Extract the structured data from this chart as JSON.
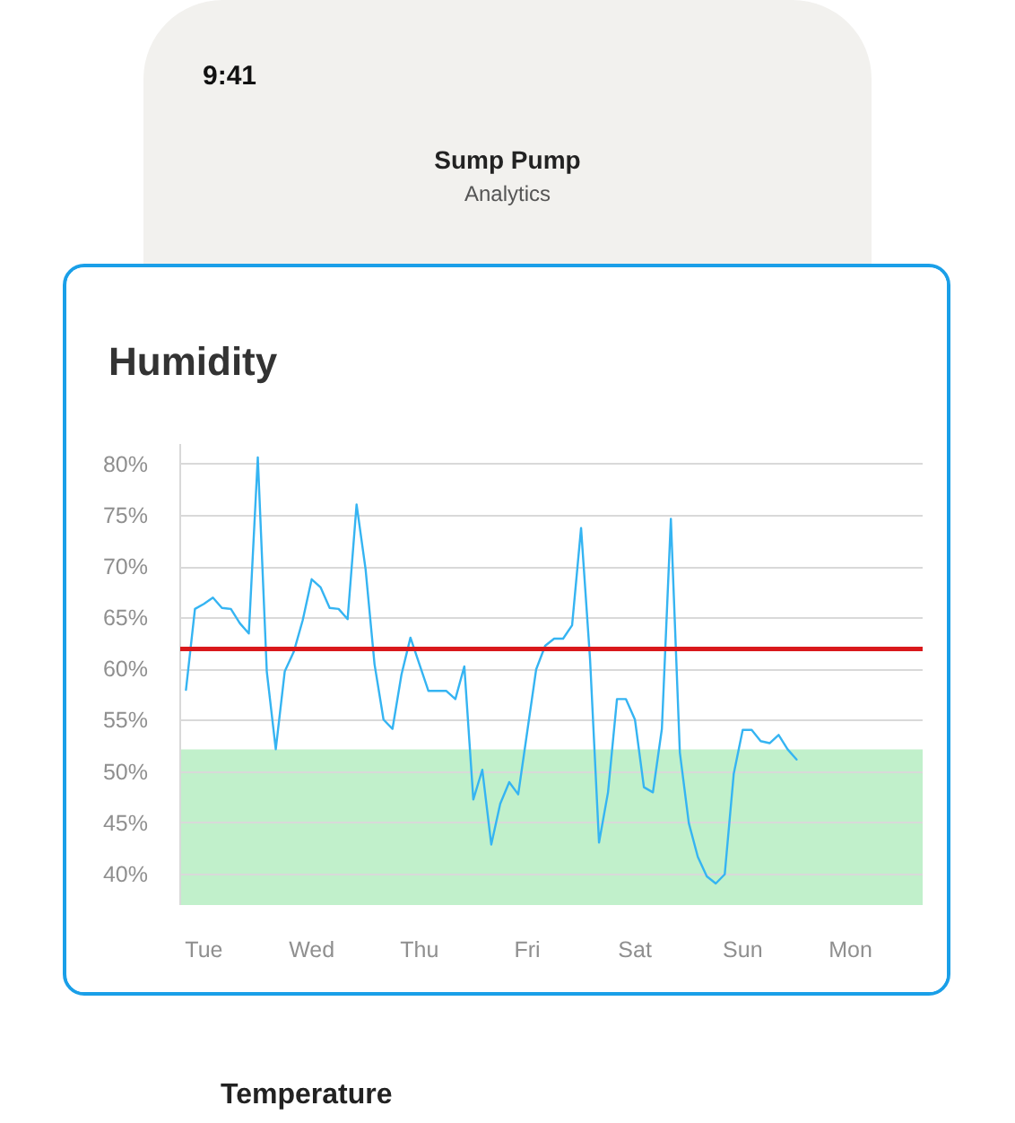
{
  "chart_data": {
    "type": "line",
    "title": "Humidity",
    "annotations": [
      "9:41",
      "Sump Pump",
      "Analytics",
      "Temperature"
    ],
    "categories": [
      null,
      null,
      "Tue",
      null,
      null,
      null,
      null,
      null,
      null,
      null,
      null,
      null,
      null,
      null,
      "Wed",
      null,
      null,
      null,
      null,
      null,
      null,
      null,
      null,
      null,
      null,
      null,
      "Thu",
      null,
      null,
      null,
      null,
      null,
      null,
      null,
      null,
      null,
      null,
      null,
      "Fri",
      null,
      null,
      null,
      null,
      null,
      null,
      null,
      null,
      null,
      null,
      null,
      "Sat",
      null,
      null,
      null,
      null,
      null,
      null,
      null,
      null,
      null,
      null,
      null,
      "Sun",
      null,
      null,
      null,
      null,
      null,
      null,
      null,
      null,
      null,
      null,
      null,
      "Mon"
    ],
    "values": [
      58.0,
      65.9,
      66.4,
      67.0,
      66.0,
      65.9,
      64.5,
      63.5,
      80.7,
      59.8,
      52.2,
      59.8,
      61.7,
      64.8,
      68.8,
      68.0,
      66.0,
      65.9,
      64.9,
      76.1,
      69.8,
      60.5,
      55.1,
      54.2,
      59.5,
      63.1,
      60.5,
      57.9,
      57.9,
      57.9,
      57.1,
      60.3,
      47.3,
      50.2,
      42.9,
      46.9,
      49.0,
      47.8,
      53.9,
      60.0,
      62.3,
      63.0,
      63.0,
      64.3,
      73.8,
      61.0,
      43.1,
      48.0,
      57.1,
      57.1,
      55.1,
      48.5,
      48.0,
      54.2,
      74.7,
      51.9,
      45.0,
      41.7,
      39.8,
      39.1,
      40.0,
      49.8,
      54.1,
      54.1,
      53.0,
      52.8,
      53.6,
      52.2,
      51.2,
      null,
      null,
      null,
      null,
      null,
      null
    ],
    "color": "#35b4f2",
    "ylim": [
      37,
      82
    ],
    "yticks": [
      {
        "value": 40,
        "label": "40%"
      },
      {
        "value": 45,
        "label": "45%"
      },
      {
        "value": 50,
        "label": "50%"
      },
      {
        "value": 55,
        "label": "55%"
      },
      {
        "value": 60,
        "label": "60%"
      },
      {
        "value": 65,
        "label": "65%"
      },
      {
        "value": 70,
        "label": "70%"
      },
      {
        "value": 75,
        "label": "75%"
      },
      {
        "value": 80,
        "label": "80%"
      }
    ],
    "ref_lines": [
      {
        "axis": "y",
        "value": 62,
        "color": "#d9191c"
      }
    ],
    "bands": [
      {
        "axis": "y",
        "from": 37,
        "to": 52.2,
        "color": "#c1f0cb"
      }
    ],
    "grid": "y"
  }
}
